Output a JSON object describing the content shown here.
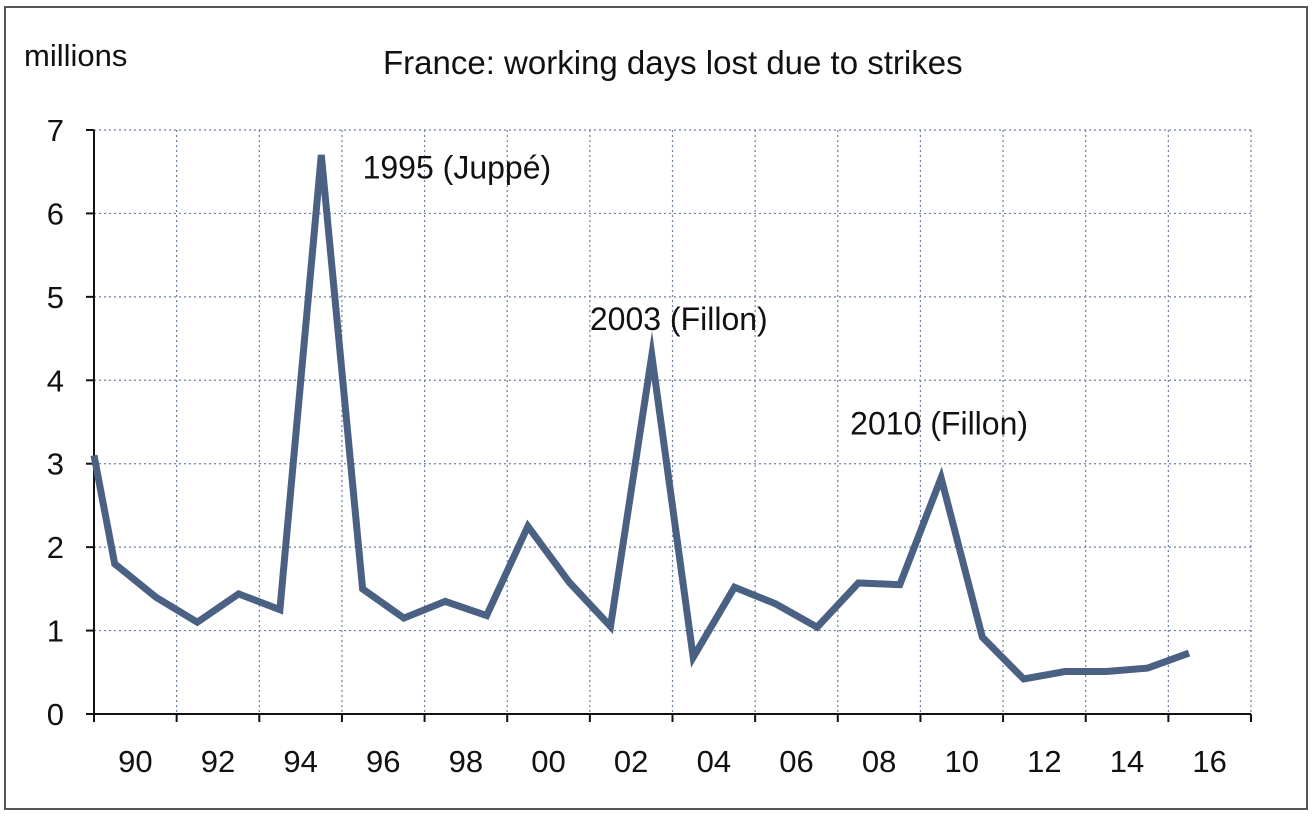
{
  "chart_data": {
    "type": "line",
    "title": "France: working days lost due to strikes",
    "ylabel": "millions",
    "xlabel": "",
    "x_tick_labels": [
      "90",
      "92",
      "94",
      "96",
      "98",
      "00",
      "02",
      "04",
      "06",
      "08",
      "10",
      "12",
      "14",
      "16"
    ],
    "y_tick_labels": [
      "0",
      "1",
      "2",
      "3",
      "4",
      "5",
      "6",
      "7"
    ],
    "ylim": [
      0,
      7
    ],
    "xlim": [
      1990,
      2018
    ],
    "grid": true,
    "line_color": "#4a6183",
    "series": [
      {
        "x": [
          1990.0,
          1990.5,
          1991.5,
          1992.5,
          1993.5,
          1994.5,
          1995.5,
          1996.5,
          1997.5,
          1998.5,
          1999.5,
          2000.5,
          2001.5,
          2002.5,
          2003.5,
          2004.5,
          2005.5,
          2006.5,
          2007.5,
          2008.5,
          2009.5,
          2010.5,
          2011.5,
          2012.5,
          2013.5,
          2014.5,
          2015.5,
          2016.5
        ],
        "values": [
          3.1,
          1.8,
          1.4,
          1.1,
          1.44,
          1.25,
          6.7,
          1.5,
          1.15,
          1.35,
          1.18,
          2.25,
          1.58,
          1.05,
          4.3,
          0.68,
          1.52,
          1.32,
          1.04,
          1.57,
          1.55,
          2.83,
          0.92,
          0.42,
          0.51,
          0.51,
          0.55,
          0.73
        ]
      }
    ],
    "annotations": [
      {
        "text": "1995 (Juppé)",
        "x": 1996.5,
        "y": 6.42
      },
      {
        "text": "2003 (Fillon)",
        "x": 2002.0,
        "y": 4.6
      },
      {
        "text": "2010 (Fillon)",
        "x": 2008.3,
        "y": 3.35
      }
    ]
  }
}
